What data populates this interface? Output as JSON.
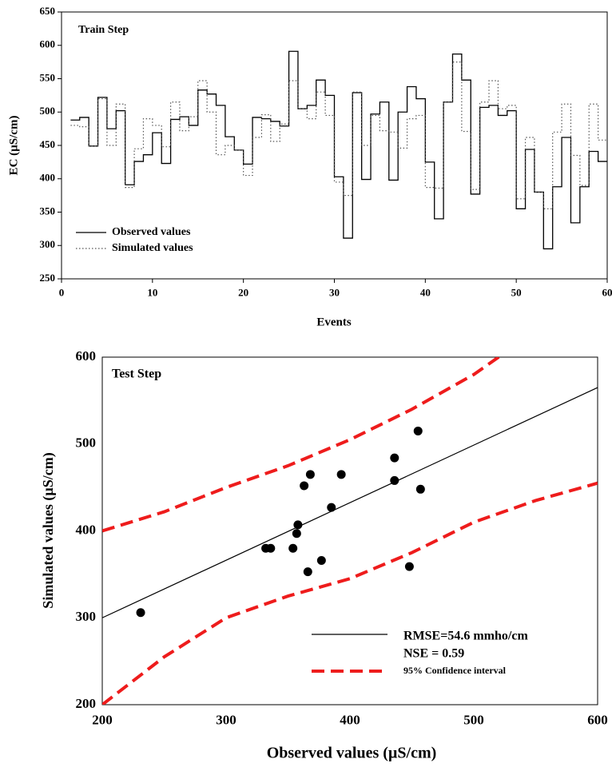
{
  "chart_data": [
    {
      "type": "step",
      "title": "Train Step",
      "x_label": "Events",
      "y_label": "EC (µS/cm)",
      "xlim": [
        0,
        60
      ],
      "ylim": [
        250,
        650
      ],
      "xticks": [
        0,
        10,
        20,
        30,
        40,
        50,
        60
      ],
      "yticks": [
        250,
        300,
        350,
        400,
        450,
        500,
        550,
        600,
        650
      ],
      "x": [
        1,
        2,
        3,
        4,
        5,
        6,
        7,
        8,
        9,
        10,
        11,
        12,
        13,
        14,
        15,
        16,
        17,
        18,
        19,
        20,
        21,
        22,
        23,
        24,
        25,
        26,
        27,
        28,
        29,
        30,
        31,
        32,
        33,
        34,
        35,
        36,
        37,
        38,
        39,
        40,
        41,
        42,
        43,
        44,
        45,
        46,
        47,
        48,
        49,
        50,
        51,
        52,
        53,
        54,
        55,
        56,
        57,
        58,
        59,
        60
      ],
      "series": [
        {
          "name": "Observed values",
          "color": "#000000",
          "dash": "solid",
          "values": [
            488,
            492,
            449,
            522,
            475,
            502,
            391,
            426,
            436,
            469,
            423,
            489,
            493,
            480,
            533,
            527,
            510,
            463,
            443,
            422,
            492,
            490,
            486,
            479,
            591,
            505,
            510,
            548,
            525,
            403,
            311,
            529,
            399,
            497,
            515,
            398,
            500,
            538,
            520,
            425,
            340,
            515,
            587,
            548,
            377,
            507,
            510,
            495,
            502,
            355,
            444,
            380,
            295,
            388,
            462,
            334,
            388,
            441,
            426,
            426
          ]
        },
        {
          "name": "Simulated values",
          "color": "#555555",
          "dash": "dotted",
          "values": [
            480,
            478,
            449,
            520,
            450,
            512,
            387,
            445,
            490,
            480,
            448,
            515,
            472,
            493,
            547,
            500,
            436,
            450,
            443,
            405,
            462,
            496,
            456,
            482,
            547,
            505,
            490,
            530,
            495,
            395,
            375,
            530,
            450,
            495,
            472,
            470,
            446,
            490,
            495,
            387,
            386,
            515,
            575,
            471,
            384,
            515,
            547,
            505,
            510,
            370,
            462,
            380,
            355,
            470,
            512,
            435,
            390,
            512,
            458,
            458
          ]
        }
      ]
    },
    {
      "type": "scatter",
      "title": "Test Step",
      "x_label": "Observed values (µS/cm)",
      "y_label": "Simulated values (µS/cm)",
      "xlim": [
        200,
        600
      ],
      "ylim": [
        200,
        600
      ],
      "xticks": [
        200,
        300,
        400,
        500,
        600
      ],
      "yticks": [
        200,
        300,
        400,
        500,
        600
      ],
      "point_color": "#000000",
      "x": [
        231,
        332,
        336,
        363,
        368,
        393,
        385,
        358,
        357,
        354,
        377,
        366,
        436,
        436,
        455,
        457,
        448
      ],
      "values": [
        306,
        380,
        380,
        452,
        465,
        465,
        427,
        407,
        397,
        380,
        366,
        353,
        484,
        458,
        515,
        448,
        359
      ],
      "fit": {
        "name": "RMSE=54.6 mmho/cm",
        "color": "#000000",
        "x": [
          200,
          600
        ],
        "values": [
          300,
          565
        ]
      },
      "annotation": "NSE = 0.59",
      "interval": {
        "name": "95% Confidence interval",
        "color": "#ee1c1c",
        "x": [
          200,
          250,
          300,
          350,
          400,
          450,
          500,
          550,
          600
        ],
        "upper": [
          400,
          422,
          450,
          475,
          505,
          540,
          580,
          630,
          685
        ],
        "lower": [
          200,
          255,
          300,
          325,
          345,
          375,
          410,
          435,
          455
        ]
      }
    }
  ]
}
